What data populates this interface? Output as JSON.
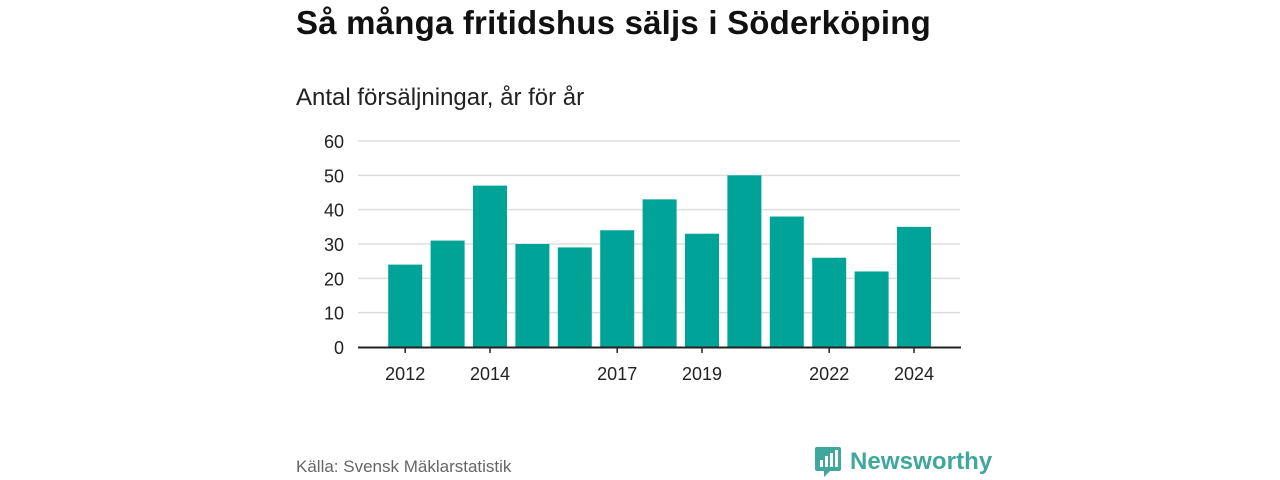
{
  "header": {
    "title": "Så många fritidshus säljs i Söderköping",
    "subtitle": "Antal försäljningar, år för år"
  },
  "footer": {
    "source": "Källa: Svensk Mäklarstatistik",
    "brand": "Newsworthy"
  },
  "colors": {
    "bar": "#00a398",
    "grid": "#dddddd",
    "axis": "#222222",
    "brand": "#3fa79c"
  },
  "chart_data": {
    "type": "bar",
    "title": "Så många fritidshus säljs i Söderköping",
    "subtitle": "Antal försäljningar, år för år",
    "categories": [
      "2012",
      "2013",
      "2014",
      "2015",
      "2016",
      "2017",
      "2018",
      "2019",
      "2020",
      "2021",
      "2022",
      "2023",
      "2024"
    ],
    "values": [
      24,
      31,
      47,
      30,
      29,
      34,
      43,
      33,
      50,
      38,
      26,
      22,
      35
    ],
    "x_tick_labels": [
      "2012",
      "2014",
      "2017",
      "2019",
      "2022",
      "2024"
    ],
    "y_ticks": [
      0,
      10,
      20,
      30,
      40,
      50,
      60
    ],
    "ylim": [
      0,
      60
    ],
    "xlabel": "",
    "ylabel": "",
    "grid": true,
    "legend": "none"
  }
}
